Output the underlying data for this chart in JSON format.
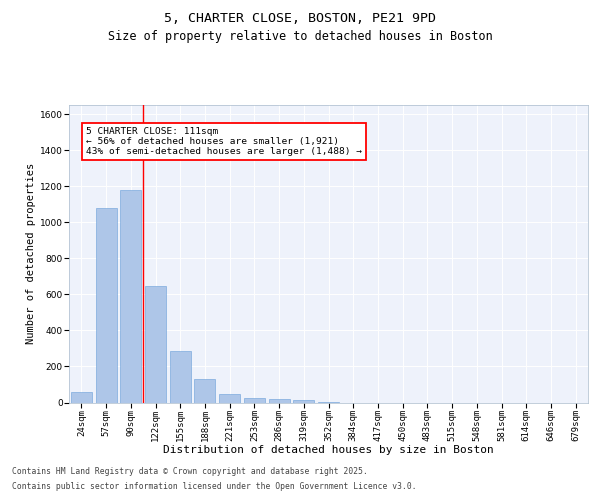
{
  "title_line1": "5, CHARTER CLOSE, BOSTON, PE21 9PD",
  "title_line2": "Size of property relative to detached houses in Boston",
  "xlabel": "Distribution of detached houses by size in Boston",
  "ylabel": "Number of detached properties",
  "categories": [
    "24sqm",
    "57sqm",
    "90sqm",
    "122sqm",
    "155sqm",
    "188sqm",
    "221sqm",
    "253sqm",
    "286sqm",
    "319sqm",
    "352sqm",
    "384sqm",
    "417sqm",
    "450sqm",
    "483sqm",
    "515sqm",
    "548sqm",
    "581sqm",
    "614sqm",
    "646sqm",
    "679sqm"
  ],
  "values": [
    60,
    1080,
    1180,
    645,
    285,
    130,
    45,
    25,
    18,
    12,
    5,
    0,
    0,
    0,
    0,
    0,
    0,
    0,
    0,
    0,
    0
  ],
  "bar_color": "#aec6e8",
  "bar_edge_color": "#6a9fd8",
  "red_line_x": 2.5,
  "annotation_text": "5 CHARTER CLOSE: 111sqm\n← 56% of detached houses are smaller (1,921)\n43% of semi-detached houses are larger (1,488) →",
  "ylim": [
    0,
    1650
  ],
  "yticks": [
    0,
    200,
    400,
    600,
    800,
    1000,
    1200,
    1400,
    1600
  ],
  "background_color": "#eef2fb",
  "grid_color": "#ffffff",
  "footer_line1": "Contains HM Land Registry data © Crown copyright and database right 2025.",
  "footer_line2": "Contains public sector information licensed under the Open Government Licence v3.0.",
  "title_fontsize": 9.5,
  "subtitle_fontsize": 8.5,
  "xlabel_fontsize": 8,
  "ylabel_fontsize": 7.5,
  "tick_fontsize": 6.5,
  "annotation_fontsize": 6.8,
  "footer_fontsize": 5.8
}
